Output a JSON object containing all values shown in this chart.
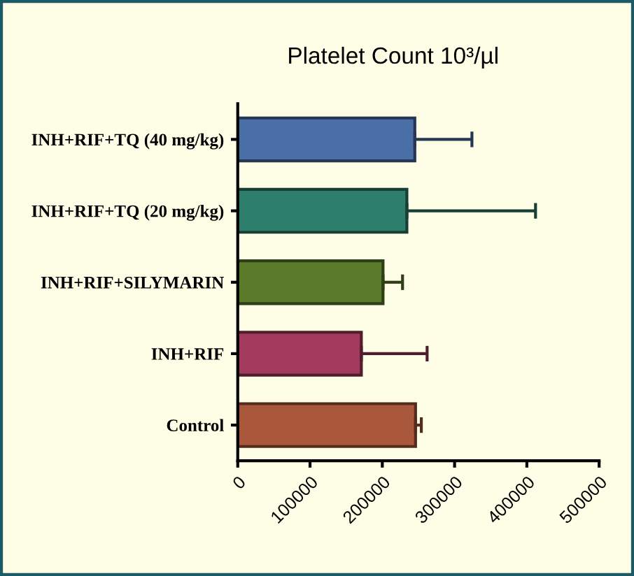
{
  "chart_data": {
    "type": "bar",
    "orientation": "horizontal",
    "title": "Platelet Count 10³/µl",
    "categories": [
      "INH+RIF+TQ (40 mg/kg)",
      "INH+RIF+TQ (20 mg/kg)",
      "INH+RIF+SILYMARIN",
      "INH+RIF",
      "Control"
    ],
    "values": [
      245000,
      234000,
      201000,
      171000,
      246000
    ],
    "errors": [
      [
        245000,
        324000
      ],
      [
        234000,
        412000
      ],
      [
        201000,
        228000
      ],
      [
        171000,
        262000
      ],
      [
        246000,
        254000
      ]
    ],
    "colors": [
      "#4a6ea6",
      "#2e7e6c",
      "#5b7b2b",
      "#a13a5c",
      "#a9583c"
    ],
    "xlim": [
      0,
      500000
    ],
    "xticks": [
      0,
      100000,
      200000,
      300000,
      400000,
      500000
    ],
    "grid": false,
    "legend": false
  }
}
